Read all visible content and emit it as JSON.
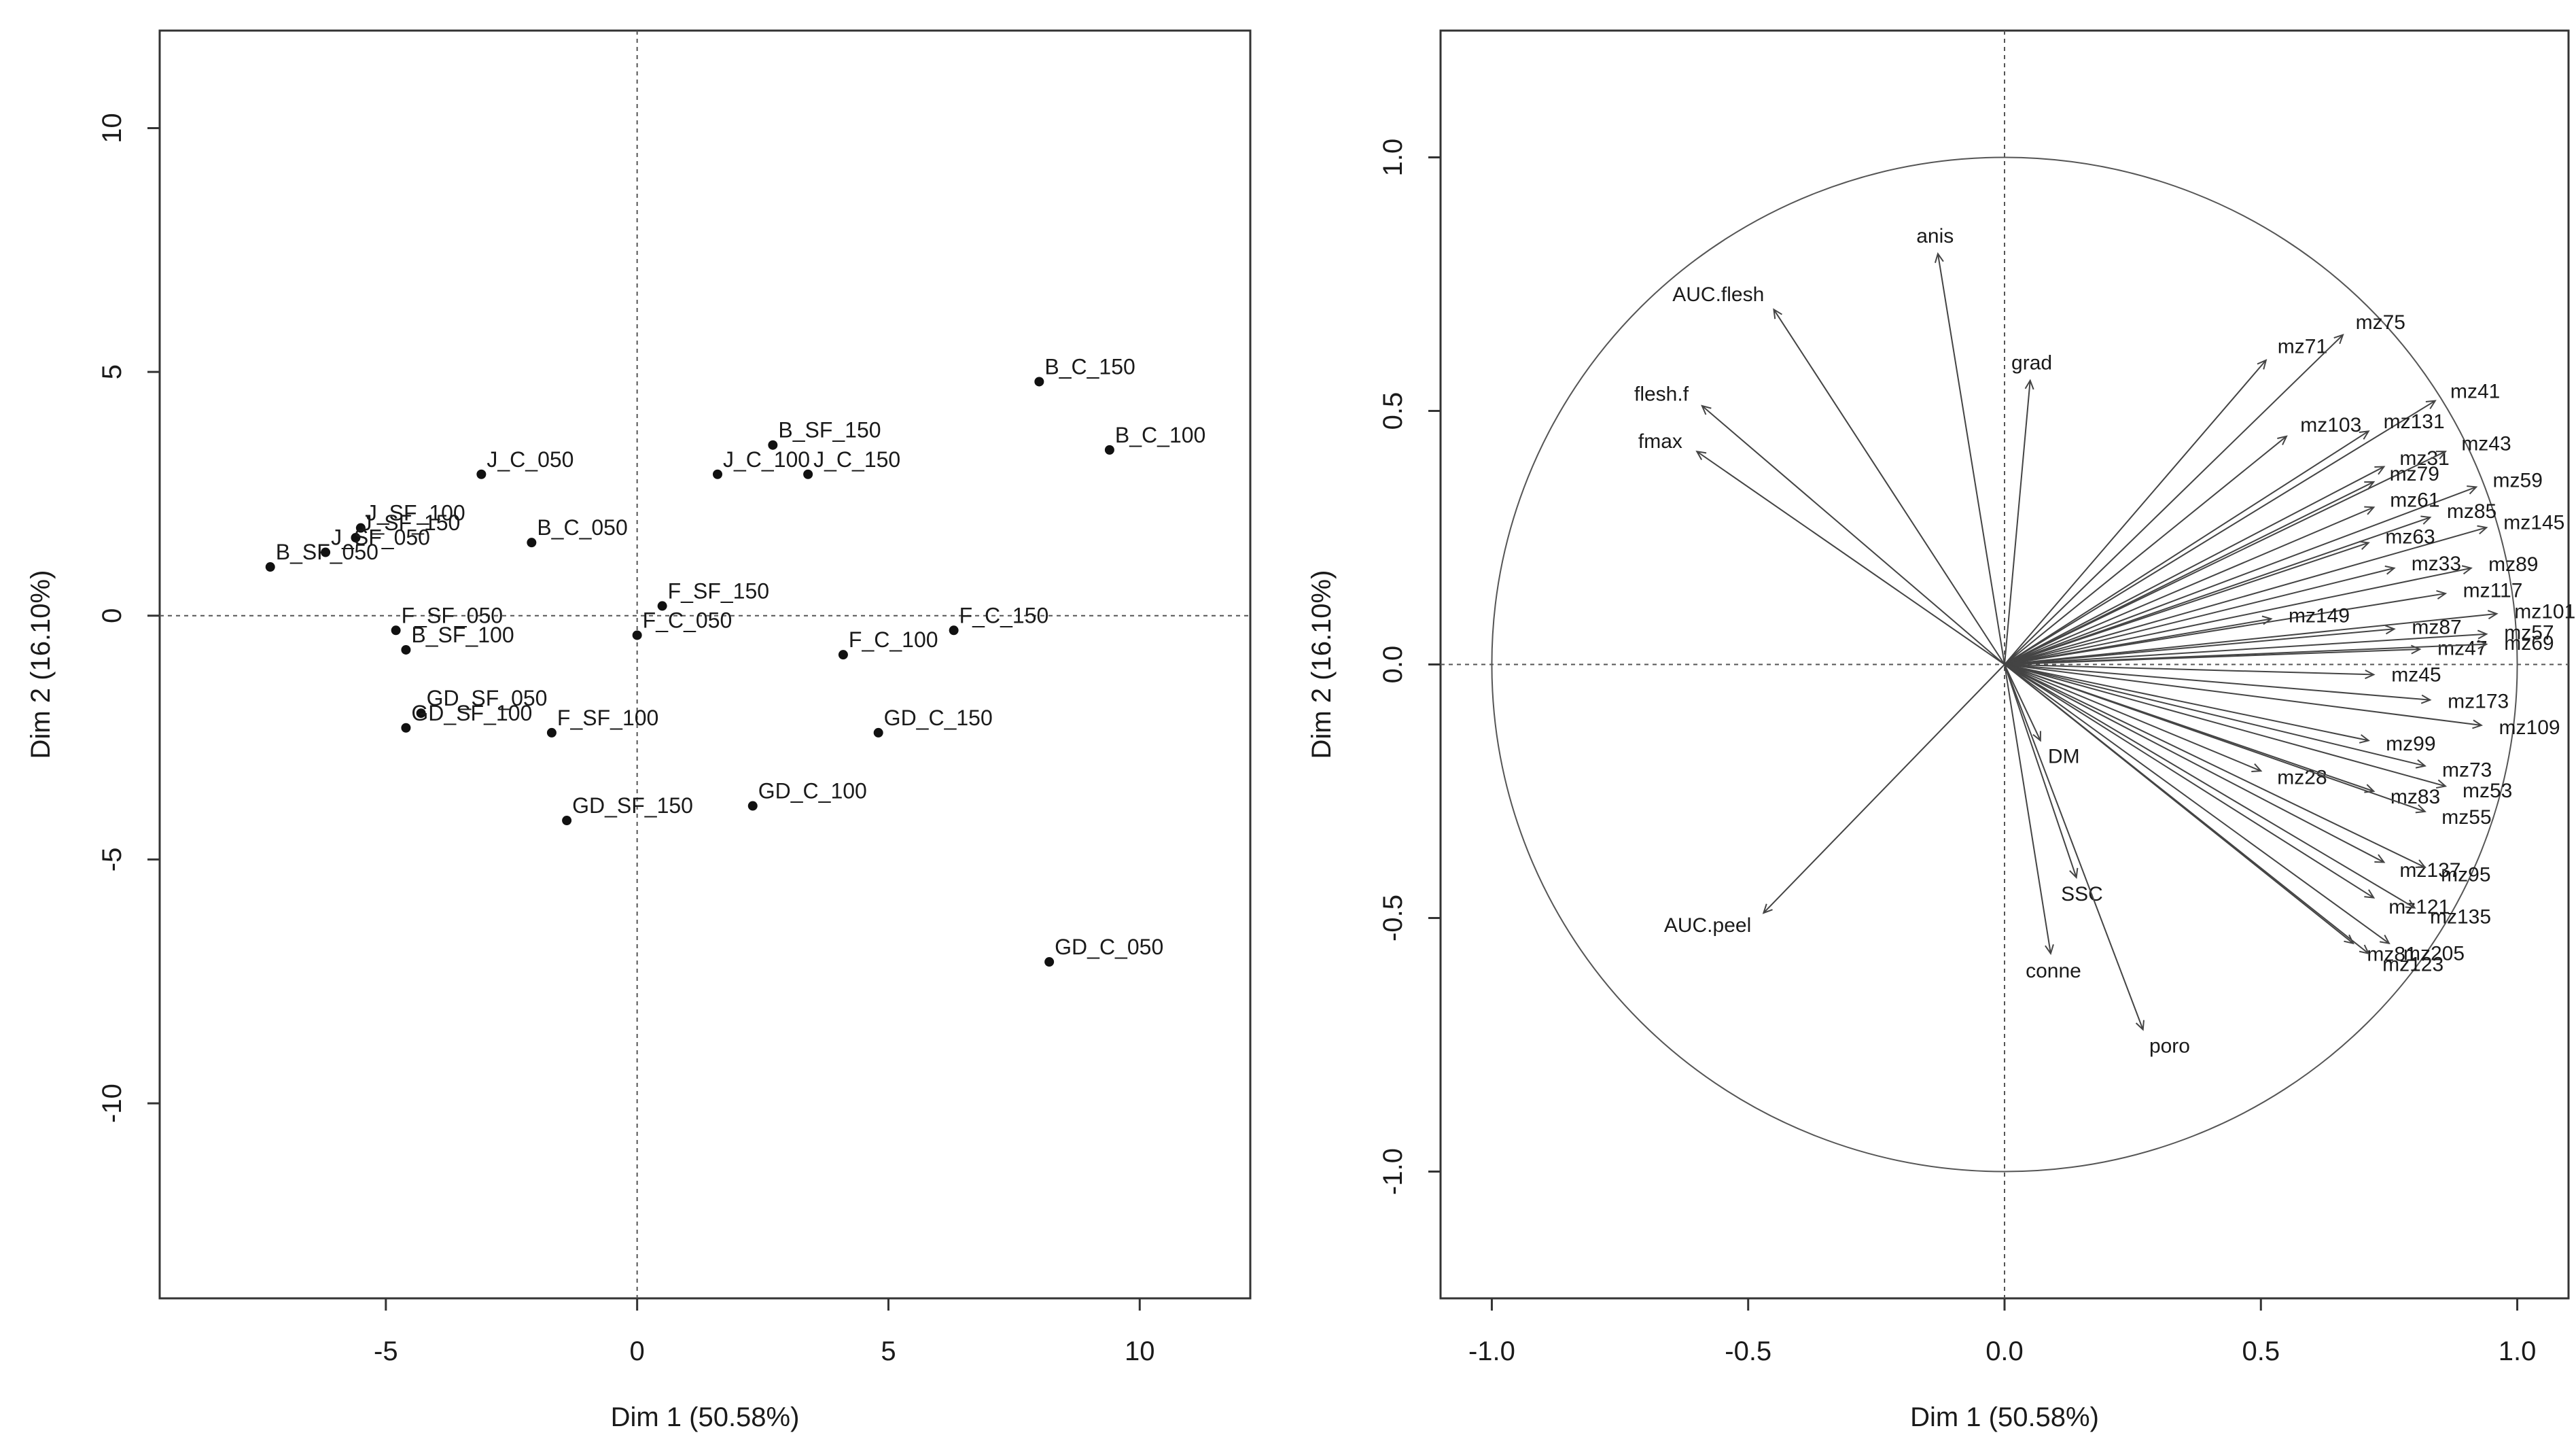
{
  "chart_data": [
    {
      "type": "scatter",
      "title": "",
      "xlabel": "Dim 1 (50.58%)",
      "ylabel": "Dim 2 (16.10%)",
      "xlim": [
        -9.5,
        12.2
      ],
      "ylim": [
        -14,
        12
      ],
      "xticks": [
        -5,
        0,
        5,
        10
      ],
      "yticks": [
        -10,
        -5,
        0,
        5,
        10
      ],
      "xtick_labels": [
        "-5",
        "0",
        "5",
        "10"
      ],
      "ytick_labels": [
        "-10",
        "-5",
        "0",
        "5",
        "10"
      ],
      "reference_lines": {
        "x": 0,
        "y": 0,
        "style": "dotted"
      },
      "points": [
        {
          "label": "B_C_150",
          "x": 8.0,
          "y": 4.8
        },
        {
          "label": "B_C_100",
          "x": 9.4,
          "y": 3.4
        },
        {
          "label": "B_SF_150",
          "x": 2.7,
          "y": 3.5
        },
        {
          "label": "J_C_150",
          "x": 3.4,
          "y": 2.9
        },
        {
          "label": "J_C_100",
          "x": 1.6,
          "y": 2.9
        },
        {
          "label": "J_C_050",
          "x": -3.1,
          "y": 2.9
        },
        {
          "label": "B_C_050",
          "x": -2.1,
          "y": 1.5
        },
        {
          "label": "J_SF_100",
          "x": -5.5,
          "y": 1.8
        },
        {
          "label": "J_SF_150",
          "x": -5.6,
          "y": 1.6
        },
        {
          "label": "B_SF_050",
          "x": -7.3,
          "y": 1.0
        },
        {
          "label": "J_SF_050",
          "x": -6.2,
          "y": 1.3
        },
        {
          "label": "F_SF_150",
          "x": 0.5,
          "y": 0.2
        },
        {
          "label": "F_C_050",
          "x": 0.0,
          "y": -0.4
        },
        {
          "label": "F_SF_050",
          "x": -4.8,
          "y": -0.3
        },
        {
          "label": "B_SF_100",
          "x": -4.6,
          "y": -0.7
        },
        {
          "label": "F_C_150",
          "x": 6.3,
          "y": -0.3
        },
        {
          "label": "F_C_100",
          "x": 4.1,
          "y": -0.8
        },
        {
          "label": "GD_SF_050",
          "x": -4.3,
          "y": -2.0
        },
        {
          "label": "GD_SF_100",
          "x": -4.6,
          "y": -2.3
        },
        {
          "label": "F_SF_100",
          "x": -1.7,
          "y": -2.4
        },
        {
          "label": "GD_C_150",
          "x": 4.8,
          "y": -2.4
        },
        {
          "label": "GD_C_100",
          "x": 2.3,
          "y": -3.9
        },
        {
          "label": "GD_SF_150",
          "x": -1.4,
          "y": -4.2
        },
        {
          "label": "GD_C_050",
          "x": 8.2,
          "y": -7.1
        }
      ]
    },
    {
      "type": "scatter",
      "title": "",
      "xlabel": "Dim 1 (50.58%)",
      "ylabel": "Dim 2 (16.10%)",
      "xlim": [
        -1.1,
        1.1
      ],
      "ylim": [
        -1.25,
        1.25
      ],
      "xticks": [
        -1,
        -0.5,
        0,
        0.5,
        1
      ],
      "yticks": [
        -1,
        -0.5,
        0,
        0.5,
        1
      ],
      "xtick_labels": [
        "-1.0",
        "-0.5",
        "0.0",
        "0.5",
        "1.0"
      ],
      "ytick_labels": [
        "-1.0",
        "-0.5",
        "0.0",
        "0.5",
        "1.0"
      ],
      "unit_circle": true,
      "reference_lines": {
        "x": 0,
        "y": 0,
        "style": "dotted"
      },
      "vectors": [
        {
          "label": "anis",
          "x": -0.13,
          "y": 0.81
        },
        {
          "label": "AUC.flesh",
          "x": -0.45,
          "y": 0.7
        },
        {
          "label": "flesh.f",
          "x": -0.59,
          "y": 0.51
        },
        {
          "label": "fmax",
          "x": -0.6,
          "y": 0.42
        },
        {
          "label": "grad",
          "x": 0.05,
          "y": 0.56
        },
        {
          "label": "mz71",
          "x": 0.51,
          "y": 0.6
        },
        {
          "label": "mz75",
          "x": 0.66,
          "y": 0.65
        },
        {
          "label": "mz41",
          "x": 0.84,
          "y": 0.52
        },
        {
          "label": "mz103",
          "x": 0.55,
          "y": 0.45
        },
        {
          "label": "mz131",
          "x": 0.71,
          "y": 0.46
        },
        {
          "label": "mz31",
          "x": 0.74,
          "y": 0.39
        },
        {
          "label": "mz43",
          "x": 0.86,
          "y": 0.42
        },
        {
          "label": "mz79",
          "x": 0.72,
          "y": 0.36
        },
        {
          "label": "mz59",
          "x": 0.92,
          "y": 0.35
        },
        {
          "label": "mz61",
          "x": 0.72,
          "y": 0.31
        },
        {
          "label": "mz85",
          "x": 0.83,
          "y": 0.29
        },
        {
          "label": "mz145",
          "x": 0.94,
          "y": 0.27
        },
        {
          "label": "mz63",
          "x": 0.71,
          "y": 0.24
        },
        {
          "label": "mz33",
          "x": 0.76,
          "y": 0.19
        },
        {
          "label": "mz89",
          "x": 0.91,
          "y": 0.19
        },
        {
          "label": "mz117",
          "x": 0.86,
          "y": 0.14
        },
        {
          "label": "mz101",
          "x": 0.96,
          "y": 0.1
        },
        {
          "label": "mz149",
          "x": 0.52,
          "y": 0.09
        },
        {
          "label": "mz87",
          "x": 0.76,
          "y": 0.07
        },
        {
          "label": "mz57",
          "x": 0.94,
          "y": 0.06
        },
        {
          "label": "mz47",
          "x": 0.81,
          "y": 0.03
        },
        {
          "label": "mz69",
          "x": 0.94,
          "y": 0.04
        },
        {
          "label": "mz45",
          "x": 0.72,
          "y": -0.02
        },
        {
          "label": "mz173",
          "x": 0.83,
          "y": -0.07
        },
        {
          "label": "mz109",
          "x": 0.93,
          "y": -0.12
        },
        {
          "label": "mz99",
          "x": 0.71,
          "y": -0.15
        },
        {
          "label": "mz73",
          "x": 0.82,
          "y": -0.2
        },
        {
          "label": "mz28",
          "x": 0.5,
          "y": -0.21
        },
        {
          "label": "mz53",
          "x": 0.86,
          "y": -0.24
        },
        {
          "label": "mz83",
          "x": 0.72,
          "y": -0.25
        },
        {
          "label": "mz55",
          "x": 0.82,
          "y": -0.29
        },
        {
          "label": "DM",
          "x": 0.07,
          "y": -0.15
        },
        {
          "label": "mz137",
          "x": 0.74,
          "y": -0.39
        },
        {
          "label": "mz95",
          "x": 0.82,
          "y": -0.4
        },
        {
          "label": "mz121",
          "x": 0.72,
          "y": -0.46
        },
        {
          "label": "mz135",
          "x": 0.8,
          "y": -0.48
        },
        {
          "label": "mz81",
          "x": 0.68,
          "y": -0.55
        },
        {
          "label": "mz205",
          "x": 0.75,
          "y": -0.55
        },
        {
          "label": "mz123",
          "x": 0.71,
          "y": -0.57
        },
        {
          "label": "SSC",
          "x": 0.14,
          "y": -0.42
        },
        {
          "label": "conne",
          "x": 0.09,
          "y": -0.57
        },
        {
          "label": "poro",
          "x": 0.27,
          "y": -0.72
        },
        {
          "label": "AUC.peel",
          "x": -0.47,
          "y": -0.49
        }
      ]
    }
  ]
}
